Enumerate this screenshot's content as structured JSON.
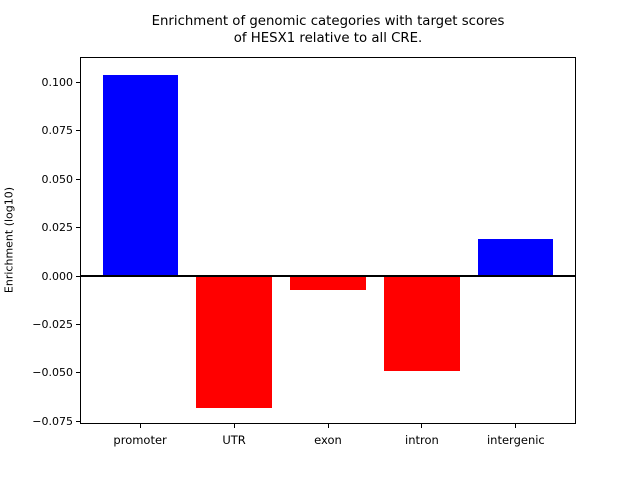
{
  "figure": {
    "background": "#ffffff"
  },
  "chart_data": {
    "type": "bar",
    "title": "Enrichment of genomic categories with target scores\nof HESX1 relative to all CRE.",
    "ylabel": "Enrichment (log10)",
    "xlabel": "",
    "categories": [
      "promoter",
      "UTR",
      "exon",
      "intron",
      "intergenic"
    ],
    "values": [
      0.104,
      -0.068,
      -0.007,
      -0.049,
      0.019
    ],
    "bar_colors": [
      "#0000ff",
      "#ff0000",
      "#ff0000",
      "#ff0000",
      "#0000ff"
    ],
    "positive_color": "#0000ff",
    "negative_color": "#ff0000",
    "yticks": [
      -0.075,
      -0.05,
      -0.025,
      0.0,
      0.025,
      0.05,
      0.075,
      0.1
    ],
    "ytick_labels": [
      "−0.075",
      "−0.050",
      "−0.025",
      "0.000",
      "0.025",
      "0.050",
      "0.075",
      "0.100"
    ],
    "ylim": [
      -0.0764,
      0.1131
    ],
    "xlim": [
      -0.64,
      4.64
    ],
    "bar_width": 0.8,
    "zero_line": true,
    "grid": false,
    "legend_position": "none",
    "axis_color": "#000000"
  }
}
